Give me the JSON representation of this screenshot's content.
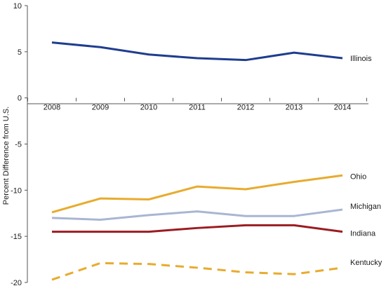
{
  "chart_data": {
    "type": "line",
    "title": "",
    "xlabel": "",
    "ylabel": "Percent Difference from U.S.",
    "x": [
      "2008",
      "2009",
      "2010",
      "2011",
      "2012",
      "2013",
      "2014"
    ],
    "ylim": [
      -20,
      10
    ],
    "yticks": [
      10,
      5,
      0,
      -5,
      -10,
      -15,
      -20
    ],
    "grid": false,
    "legend": "labels at line ends (right)",
    "series": [
      {
        "name": "Illinois",
        "color": "#1f3d8f",
        "dash": false,
        "values": [
          6.0,
          5.5,
          4.7,
          4.3,
          4.1,
          4.9,
          4.3
        ]
      },
      {
        "name": "Ohio",
        "color": "#e8ab2e",
        "dash": false,
        "values": [
          -12.4,
          -10.9,
          -11.0,
          -9.6,
          -9.9,
          -9.1,
          -8.4
        ]
      },
      {
        "name": "Michigan",
        "color": "#a9b6d2",
        "dash": false,
        "values": [
          -13.0,
          -13.2,
          -12.7,
          -12.3,
          -12.8,
          -12.8,
          -12.1
        ]
      },
      {
        "name": "Indiana",
        "color": "#9b1c20",
        "dash": false,
        "values": [
          -14.5,
          -14.5,
          -14.5,
          -14.1,
          -13.8,
          -13.8,
          -14.5
        ]
      },
      {
        "name": "Kentucky",
        "color": "#e8ab2e",
        "dash": true,
        "values": [
          -19.7,
          -17.9,
          -18.0,
          -18.4,
          -18.9,
          -19.1,
          -18.4
        ]
      }
    ]
  }
}
